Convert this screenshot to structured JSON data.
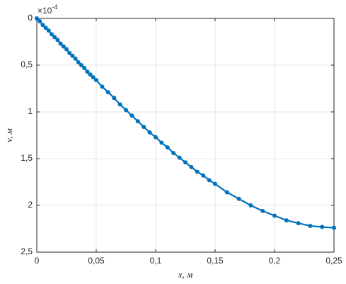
{
  "chart_data": {
    "type": "line",
    "xlabel": "x, м",
    "ylabel": "v, м",
    "y_multiplier": "×10",
    "y_multiplier_exp": "-4",
    "y_reversed": true,
    "grid": true,
    "xlim": [
      0,
      0.25
    ],
    "ylim": [
      0,
      2.5
    ],
    "xticks": [
      0,
      {
        "value": 0.05,
        "label": "0,05"
      },
      {
        "value": 0.1,
        "label": "0,1"
      },
      {
        "value": 0.15,
        "label": "0,15"
      },
      {
        "value": 0.2,
        "label": "0,2"
      },
      {
        "value": 0.25,
        "label": "0,25"
      }
    ],
    "yticks": [
      0,
      {
        "value": 0.5,
        "label": "0,5"
      },
      1,
      {
        "value": 1.5,
        "label": "1,5"
      },
      2,
      {
        "value": 2.5,
        "label": "2,5"
      }
    ],
    "x": [
      0,
      0.0025,
      0.005,
      0.0075,
      0.01,
      0.0125,
      0.015,
      0.0175,
      0.02,
      0.0225,
      0.025,
      0.0275,
      0.03,
      0.0325,
      0.035,
      0.0375,
      0.04,
      0.0425,
      0.045,
      0.0475,
      0.05,
      0.055,
      0.06,
      0.065,
      0.07,
      0.075,
      0.08,
      0.085,
      0.09,
      0.095,
      0.1,
      0.105,
      0.11,
      0.115,
      0.12,
      0.125,
      0.13,
      0.135,
      0.14,
      0.145,
      0.15,
      0.16,
      0.17,
      0.18,
      0.19,
      0.2,
      0.21,
      0.22,
      0.23,
      0.24,
      0.25
    ],
    "series": [
      {
        "color": "#0072bd",
        "values": [
          0,
          0.03,
          0.07,
          0.1,
          0.13,
          0.17,
          0.2,
          0.23,
          0.27,
          0.3,
          0.33,
          0.37,
          0.4,
          0.43,
          0.47,
          0.5,
          0.53,
          0.57,
          0.6,
          0.63,
          0.66,
          0.73,
          0.79,
          0.85,
          0.92,
          0.98,
          1.04,
          1.1,
          1.16,
          1.22,
          1.27,
          1.33,
          1.38,
          1.44,
          1.49,
          1.54,
          1.59,
          1.64,
          1.68,
          1.73,
          1.77,
          1.86,
          1.93,
          2.0,
          2.06,
          2.11,
          2.16,
          2.19,
          2.22,
          2.23,
          2.24
        ]
      }
    ]
  }
}
